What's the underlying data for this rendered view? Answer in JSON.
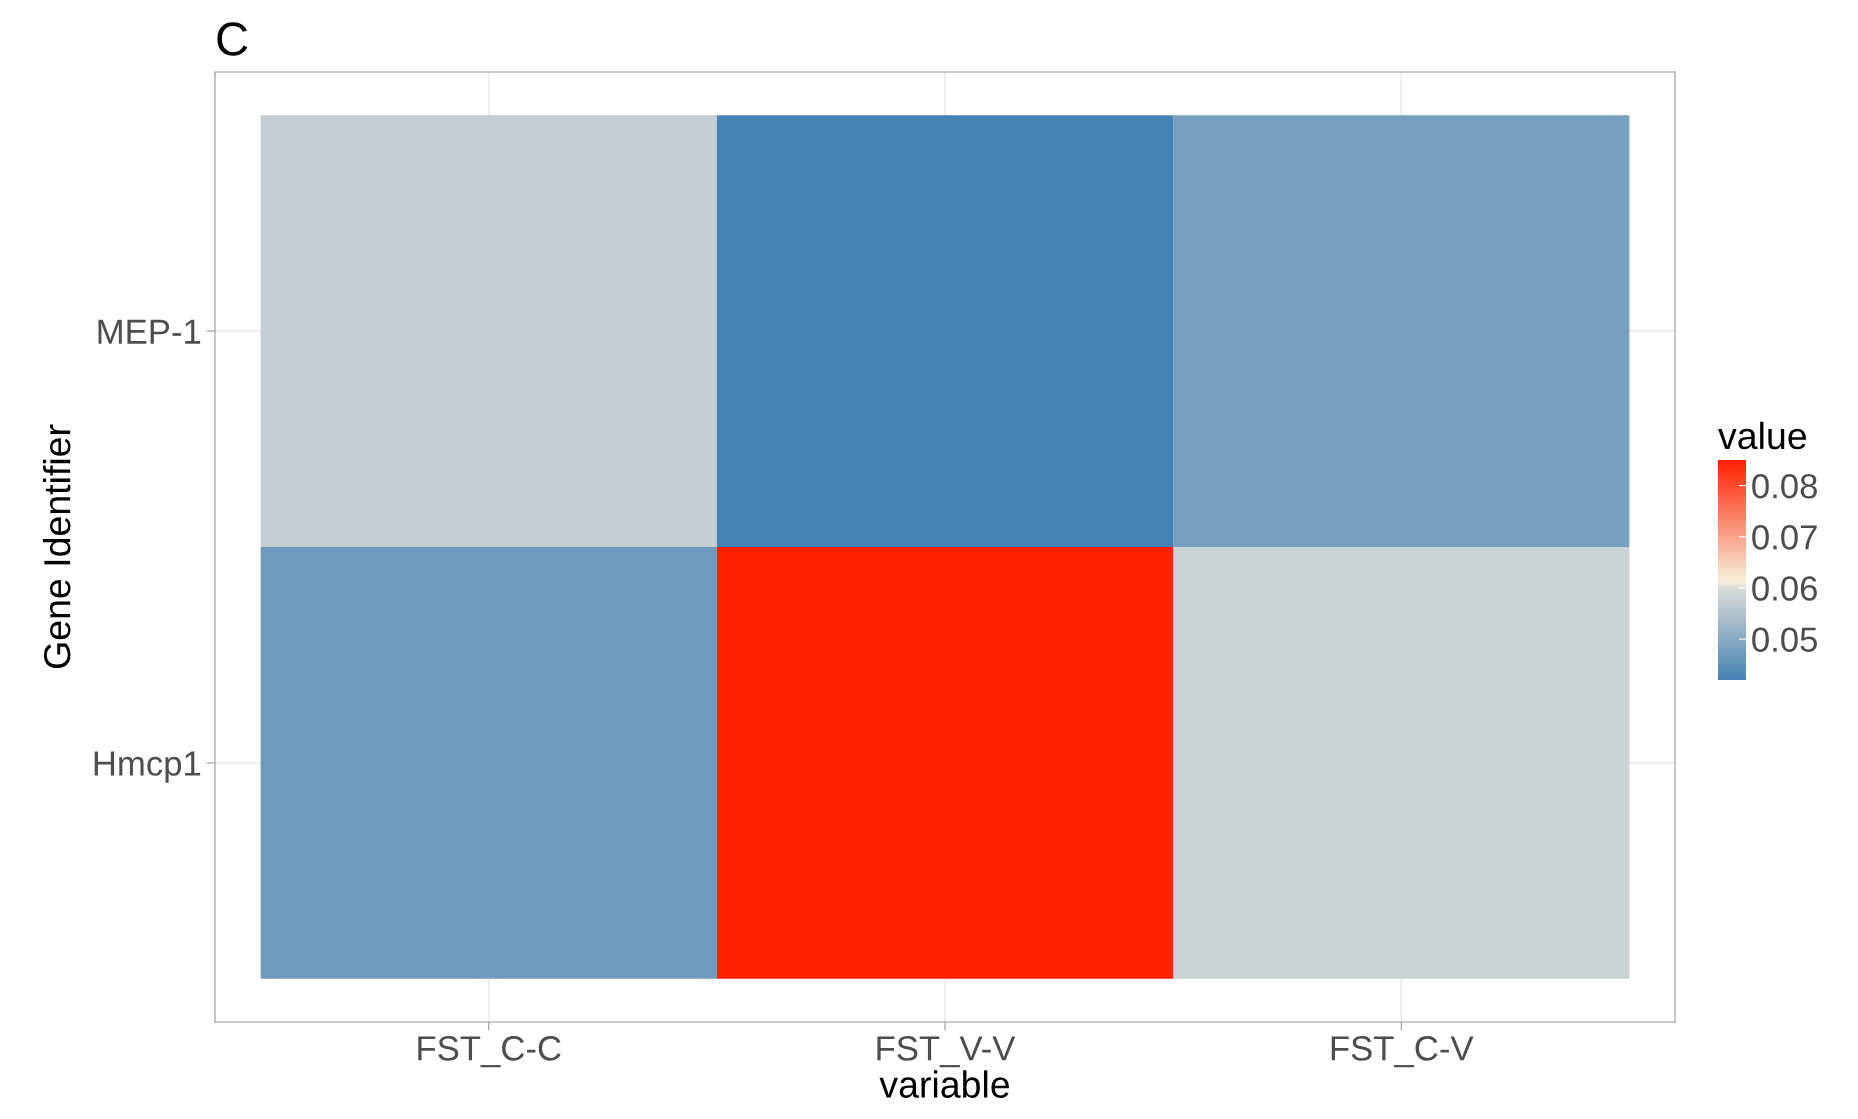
{
  "chart_data": {
    "type": "heatmap",
    "title": "C",
    "xlabel": "variable",
    "ylabel": "Gene Identifier",
    "clabel": "value",
    "categories": [
      "FST_C-C",
      "FST_V-V",
      "FST_C-V"
    ],
    "y_categories": [
      "MEP-1",
      "Hmcp1"
    ],
    "cells": [
      [
        0.057,
        0.042,
        0.048
      ],
      [
        0.047,
        0.085,
        0.058
      ]
    ],
    "clim": [
      0.042,
      0.085
    ],
    "cticks": [
      0.05,
      0.06,
      0.07,
      0.08
    ],
    "grid": true
  }
}
